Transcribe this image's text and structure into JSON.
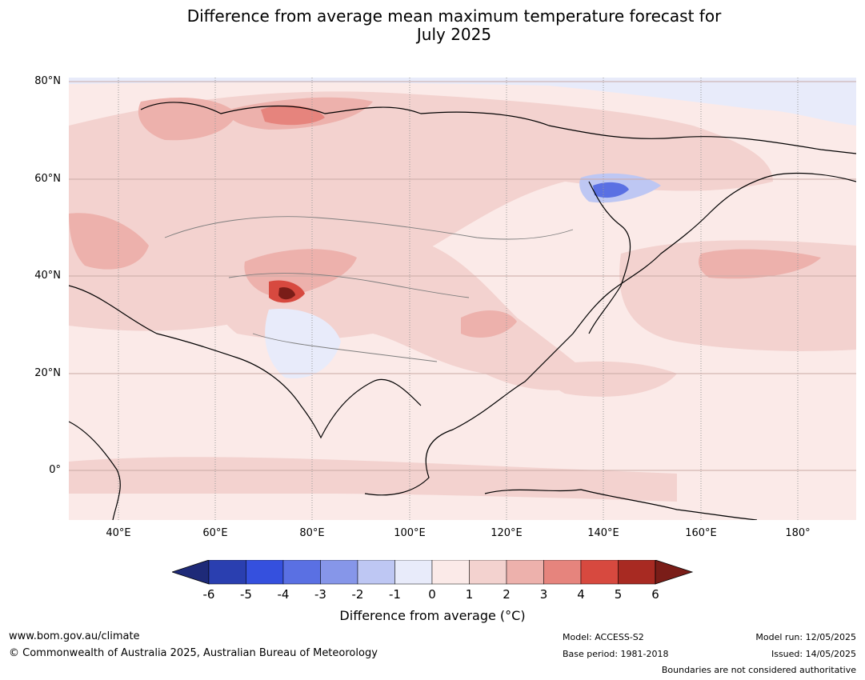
{
  "title_line1": "Difference from average mean maximum temperature forecast for",
  "title_line2": "July 2025",
  "latitude_labels": [
    "80°N",
    "60°N",
    "40°N",
    "20°N",
    "0°"
  ],
  "longitude_labels": [
    "40°E",
    "60°E",
    "80°E",
    "100°E",
    "120°E",
    "140°E",
    "160°E",
    "180°"
  ],
  "map_extent": {
    "lon_min": 30,
    "lon_max": 192,
    "lat_min": -10,
    "lat_max": 81
  },
  "colorbar": {
    "title": "Difference from average (°C)",
    "labels": [
      "-6",
      "-5",
      "-4",
      "-3",
      "-2",
      "-1",
      "0",
      "1",
      "2",
      "3",
      "4",
      "5",
      "6"
    ],
    "colors": [
      "#1e2a78",
      "#2a3fb0",
      "#3550de",
      "#5a70e3",
      "#8696e9",
      "#bec7f3",
      "#e8ebfa",
      "#fbeae8",
      "#f3d2cf",
      "#edb1ac",
      "#e6847d",
      "#d7493f",
      "#a82a22",
      "#7a1d18"
    ]
  },
  "footer": {
    "website": "www.bom.gov.au/climate",
    "copyright": "© Commonwealth of Australia 2025, Australian Bureau of Meteorology",
    "model": "Model: ACCESS-S2",
    "base_period": "Base period: 1981-2018",
    "model_run": "Model run: 12/05/2025",
    "issued": "Issued: 14/05/2025",
    "disclaimer": "Boundaries are not considered authoritative"
  }
}
